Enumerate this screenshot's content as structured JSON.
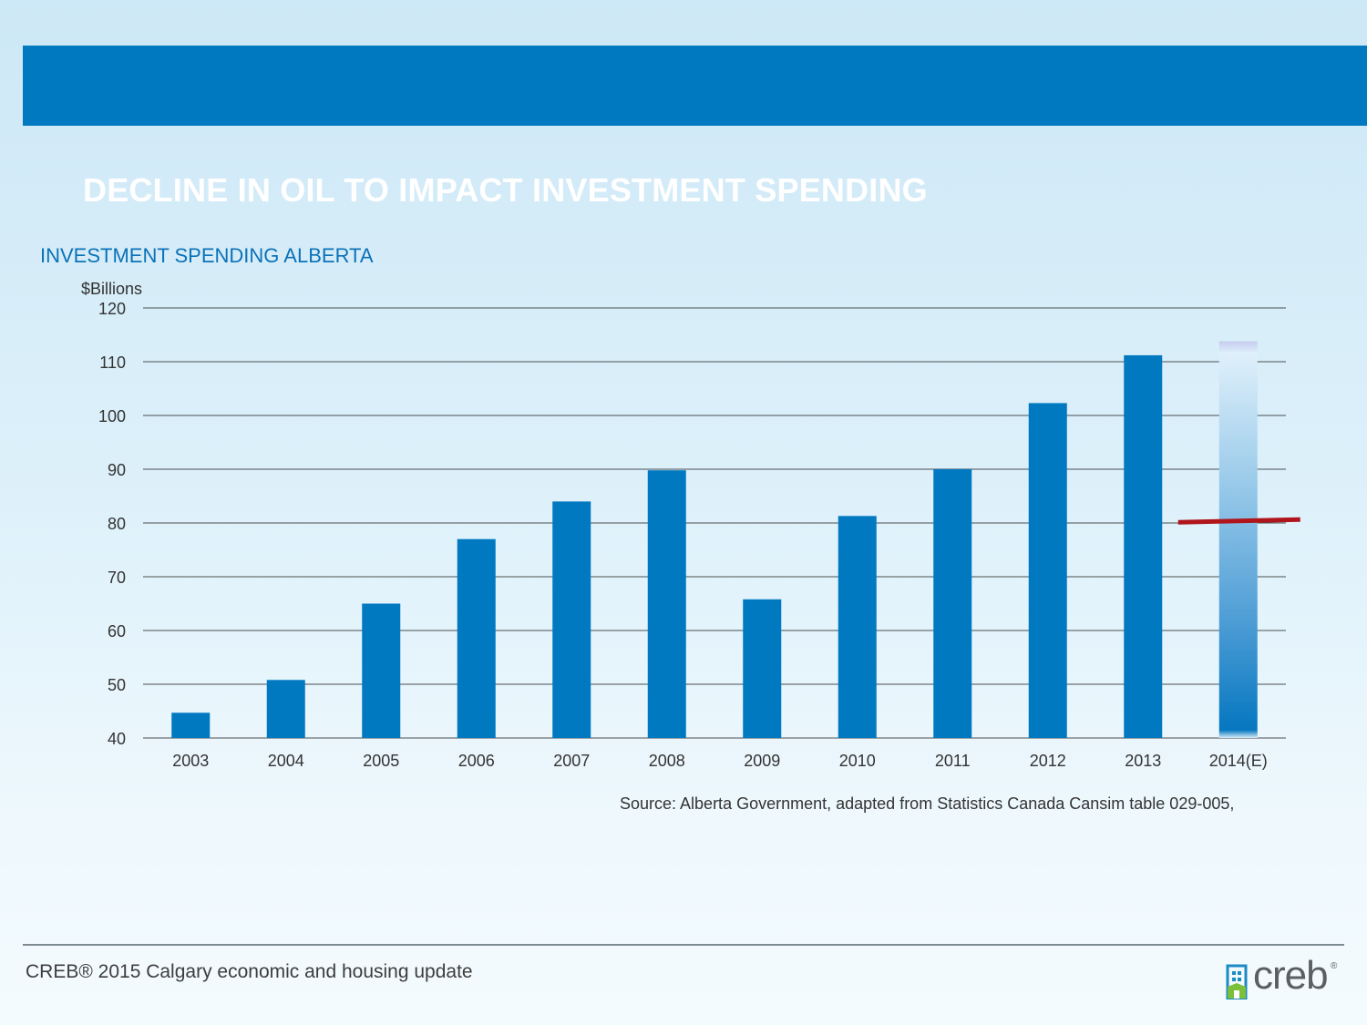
{
  "slide": {
    "title": "DECLINE IN OIL TO IMPACT INVESTMENT SPENDING",
    "footer": "CREB® 2015 Calgary economic and housing update",
    "logo_text": "creb",
    "logo_reg": "®",
    "source": "Source: Alberta Government, adapted from Statistics Canada Cansim table 029-005,"
  },
  "colors": {
    "banner": "#0179c1",
    "bar": "#0179c1",
    "estimate_line": "#b0151c",
    "title_text": "#ffffff",
    "chart_title_text": "#0a72b8"
  },
  "chart_data": {
    "type": "bar",
    "title": "INVESTMENT SPENDING ALBERTA",
    "ylabel": "$Billions",
    "xlabel": "",
    "categories": [
      "2003",
      "2004",
      "2005",
      "2006",
      "2007",
      "2008",
      "2009",
      "2010",
      "2011",
      "2012",
      "2013",
      "2014(E)"
    ],
    "values": [
      44.7,
      50.8,
      65.0,
      77.0,
      84.0,
      89.8,
      65.8,
      81.3,
      90.0,
      102.3,
      111.2,
      113.8
    ],
    "estimate_flags": [
      false,
      false,
      false,
      false,
      false,
      false,
      false,
      false,
      false,
      false,
      false,
      true
    ],
    "estimate_marker_value": 80.3,
    "ylim": [
      40,
      120
    ],
    "yticks": [
      40,
      50,
      60,
      70,
      80,
      90,
      100,
      110,
      120
    ],
    "grid": true,
    "legend": "none"
  }
}
